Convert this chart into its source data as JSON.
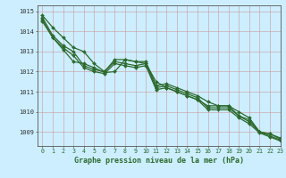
{
  "bg_color": "#cceeff",
  "grid_color": "#aaccaa",
  "line_color": "#2d6a2d",
  "xlabel": "Graphe pression niveau de la mer (hPa)",
  "xlim": [
    -0.5,
    23
  ],
  "ylim": [
    1008.3,
    1015.3
  ],
  "yticks": [
    1009,
    1010,
    1011,
    1012,
    1013,
    1014,
    1015
  ],
  "xticks": [
    0,
    1,
    2,
    3,
    4,
    5,
    6,
    7,
    8,
    9,
    10,
    11,
    12,
    13,
    14,
    15,
    16,
    17,
    18,
    19,
    20,
    21,
    22,
    23
  ],
  "series": [
    [
      1014.8,
      1014.2,
      1013.7,
      1013.2,
      1013.0,
      1012.4,
      1012.0,
      1012.6,
      1012.6,
      1012.5,
      1012.5,
      1011.3,
      1011.4,
      1011.2,
      1011.0,
      1010.8,
      1010.5,
      1010.3,
      1010.3,
      1010.0,
      1009.7,
      1009.0,
      1008.9,
      1008.65
    ],
    [
      1014.7,
      1013.8,
      1013.3,
      1013.0,
      1012.3,
      1012.1,
      1012.0,
      1012.5,
      1012.4,
      1012.3,
      1012.4,
      1011.2,
      1011.3,
      1011.1,
      1010.9,
      1010.7,
      1010.2,
      1010.2,
      1010.2,
      1009.8,
      1009.5,
      1009.0,
      1008.8,
      1008.6
    ],
    [
      1014.6,
      1013.7,
      1013.2,
      1012.8,
      1012.2,
      1012.0,
      1011.9,
      1012.4,
      1012.3,
      1012.2,
      1012.3,
      1011.1,
      1011.2,
      1011.0,
      1010.8,
      1010.6,
      1010.1,
      1010.1,
      1010.1,
      1009.7,
      1009.4,
      1008.95,
      1008.75,
      1008.55
    ],
    [
      1014.5,
      1013.7,
      1013.1,
      1012.5,
      1012.4,
      1012.2,
      1011.95,
      1012.0,
      1012.6,
      1012.5,
      1012.4,
      1011.5,
      1011.2,
      1011.0,
      1010.8,
      1010.6,
      1010.3,
      1010.3,
      1010.3,
      1009.8,
      1009.6,
      1009.0,
      1008.9,
      1008.7
    ]
  ]
}
